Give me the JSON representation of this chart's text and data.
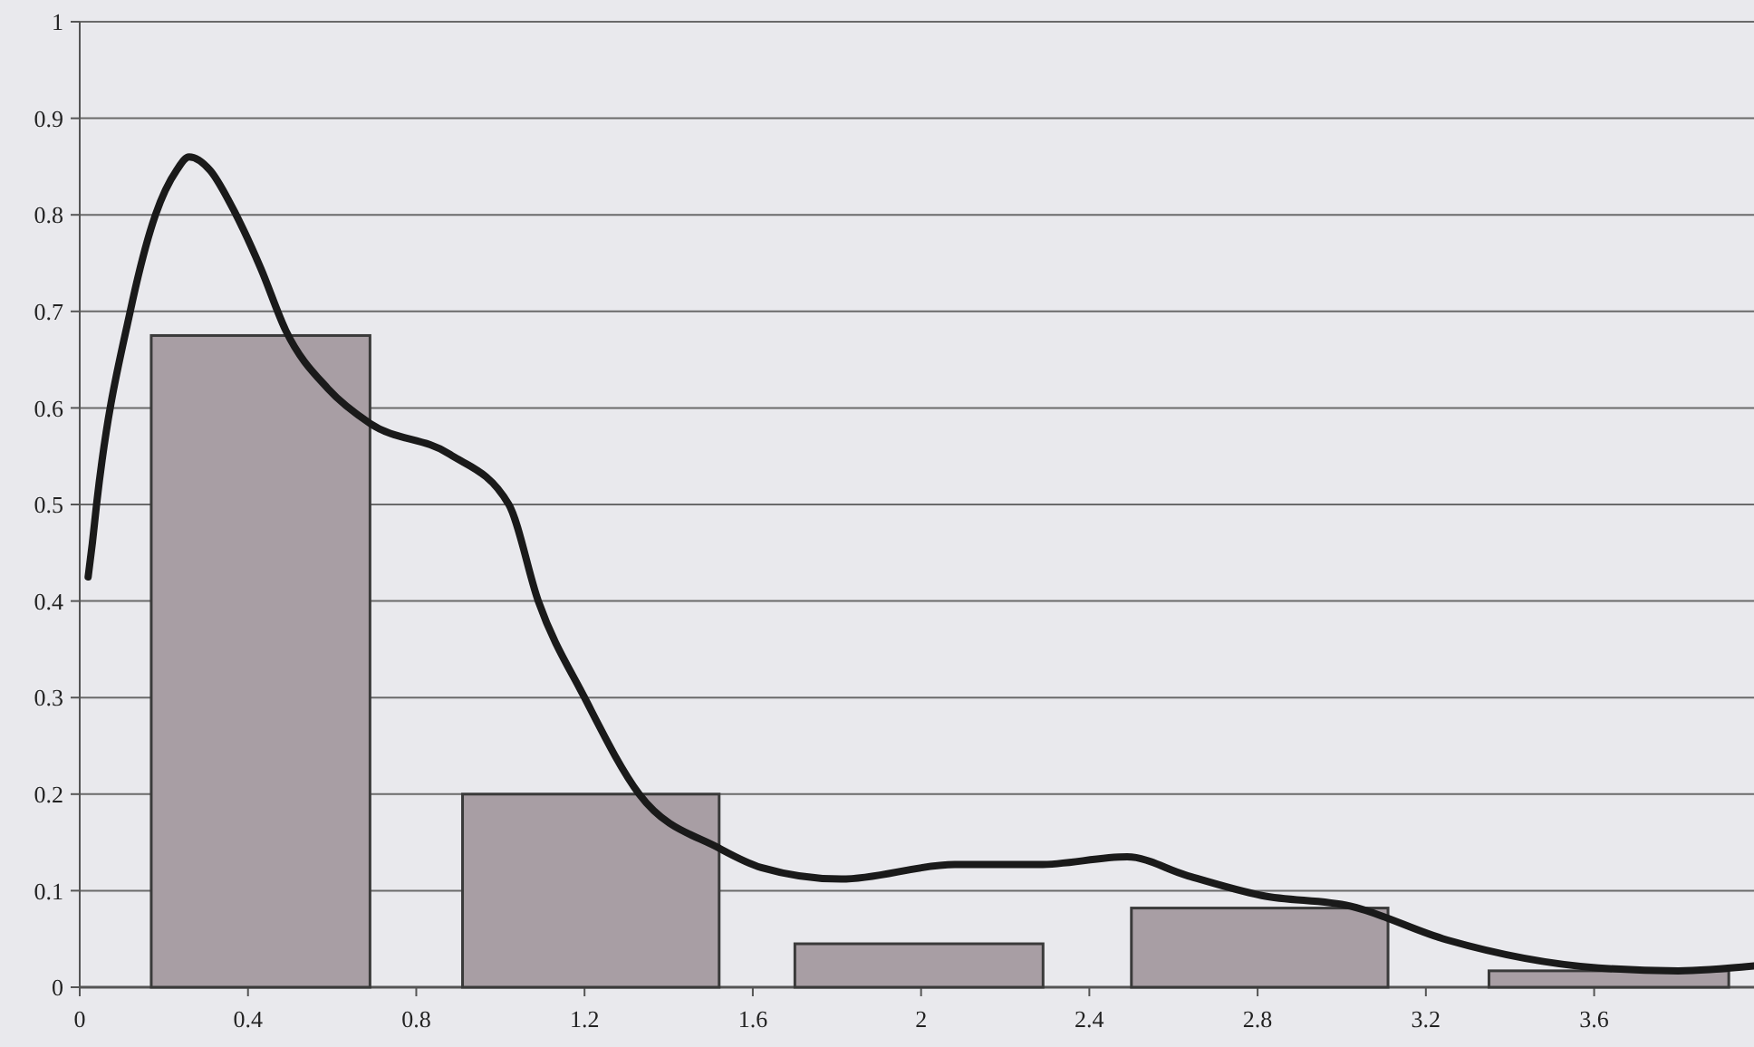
{
  "chart_data": {
    "type": "histogram",
    "grid": "y",
    "xlim": [
      0,
      3.98
    ],
    "ylim": [
      0,
      1
    ],
    "xticks": [
      0,
      0.4,
      0.8,
      1.2,
      1.6,
      2,
      2.4,
      2.8,
      3.2,
      3.6
    ],
    "yticks": [
      0,
      0.1,
      0.2,
      0.3,
      0.4,
      0.5,
      0.6,
      0.7,
      0.8,
      0.9,
      1
    ],
    "series": [
      {
        "color": "#a89ea4",
        "bins": [
          0.17,
          0.69,
          0.91,
          1.52,
          1.7,
          2.29,
          2.5,
          3.11,
          3.35,
          3.92
        ],
        "values": [
          0.675,
          0,
          0.2,
          0,
          0.045,
          0,
          0.082,
          0,
          0.017
        ]
      },
      {
        "type": "line",
        "color": "#1a1a1a",
        "x": [
          0.02,
          0.03,
          0.04,
          0.12,
          0.18,
          0.23,
          0.26,
          0.31,
          0.36,
          0.43,
          0.49,
          0.59,
          0.69,
          0.88,
          1.02,
          1.09,
          1.2,
          1.33,
          1.52,
          1.62,
          1.81,
          2.08,
          2.28,
          2.49,
          2.63,
          2.81,
          3.02,
          3.25,
          3.61,
          3.8,
          3.98
        ],
        "values": [
          0.425,
          0.46,
          0.5,
          0.7,
          0.8,
          0.846,
          0.86,
          0.846,
          0.81,
          0.745,
          0.68,
          0.62,
          0.584,
          0.552,
          0.5,
          0.4,
          0.3,
          0.2,
          0.144,
          0.124,
          0.112,
          0.127,
          0.127,
          0.135,
          0.116,
          0.095,
          0.084,
          0.049,
          0.02,
          0.017,
          0.022
        ]
      }
    ]
  }
}
